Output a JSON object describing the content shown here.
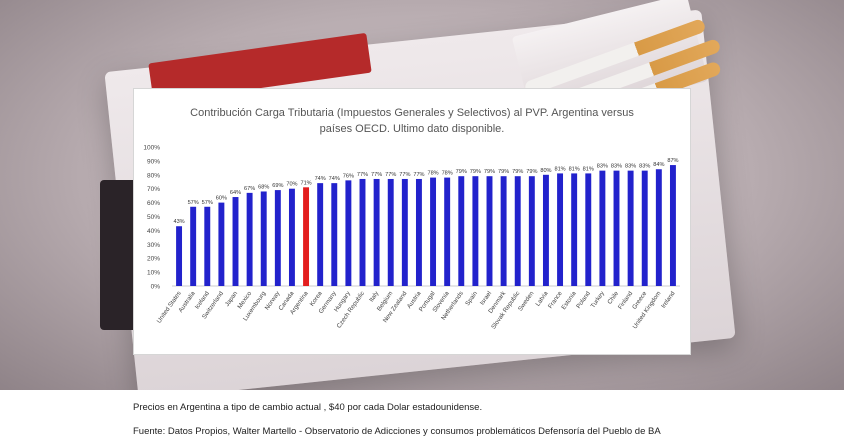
{
  "caption": {
    "line1": "Precios en Argentina a tipo de cambio actual , $40 por cada Dolar estadounidense.",
    "line2": "Fuente: Datos Propios, Walter Martello - Observatorio de Adicciones y consumos problemáticos Defensoría del Pueblo de BA"
  },
  "chart_data": {
    "type": "bar",
    "title": "Contribución Carga Tributaria (Impuestos Generales y Selectivos) al PVP. Argentina versus países OECD. Ultimo dato disponible.",
    "title_lines": [
      "Contribución Carga Tributaria (Impuestos Generales y Selectivos) al PVP. Argentina versus",
      "países OECD. Ultimo dato disponible."
    ],
    "xlabel": "",
    "ylabel": "",
    "ylim": [
      0,
      100
    ],
    "yticks": [
      "0%",
      "10%",
      "20%",
      "30%",
      "40%",
      "50%",
      "60%",
      "70%",
      "80%",
      "90%",
      "100%"
    ],
    "grid": false,
    "legend": "none",
    "bar_color": "#2222cc",
    "highlight_color": "#e31d1d",
    "highlight_category": "Argentina",
    "categories": [
      "United States",
      "Australia",
      "Iceland",
      "Switzerland",
      "Japan",
      "Mexico",
      "Luxembourg",
      "Norway",
      "Canada",
      "Argentina",
      "Korea",
      "Germany",
      "Hungary",
      "Czech Republic",
      "Italy",
      "Belgium",
      "New Zealand",
      "Austria",
      "Portugal",
      "Slovenia",
      "Netherlands",
      "Spain",
      "Israel",
      "Denmark",
      "Slovak Republic",
      "Sweden",
      "Latvia",
      "France",
      "Estonia",
      "Poland",
      "Turkey",
      "Chile",
      "Finland",
      "Greece",
      "United Kingdom",
      "Ireland"
    ],
    "values": [
      43,
      57,
      57,
      60,
      64,
      67,
      68,
      69,
      70,
      71,
      74,
      74,
      76,
      77,
      77,
      77,
      77,
      77,
      78,
      78,
      79,
      79,
      79,
      79,
      79,
      79,
      80,
      81,
      81,
      81,
      83,
      83,
      83,
      83,
      84,
      87
    ],
    "data_labels": [
      "43%",
      "57%",
      "57%",
      "60%",
      "64%",
      "67%",
      "68%",
      "69%",
      "70%",
      "71%",
      "74%",
      "74%",
      "76%",
      "77%",
      "77%",
      "77%",
      "77%",
      "77%",
      "78%",
      "78%",
      "79%",
      "79%",
      "79%",
      "79%",
      "79%",
      "79%",
      "80%",
      "81%",
      "81%",
      "81%",
      "83%",
      "83%",
      "83%",
      "83%",
      "84%",
      "87%"
    ]
  }
}
